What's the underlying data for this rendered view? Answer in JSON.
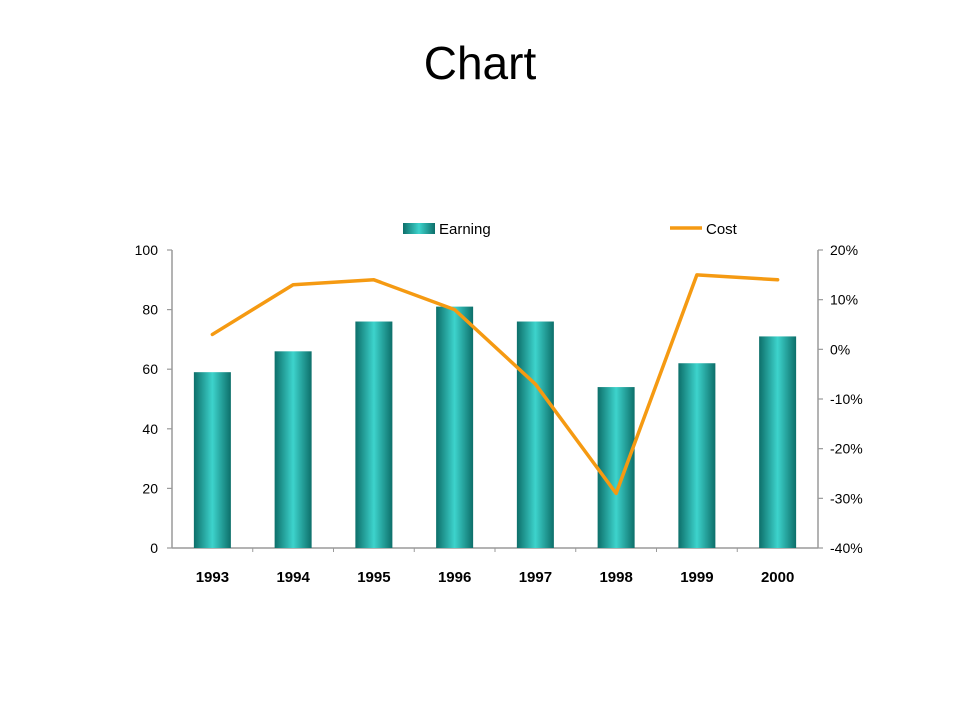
{
  "slide": {
    "title": "Chart"
  },
  "colors": {
    "bar_dark": "#0d6f6a",
    "bar_light": "#3dd3cc",
    "line": "#f59a12",
    "axis": "#9a9a9a"
  },
  "chart_data": {
    "type": "bar",
    "title": "",
    "categories": [
      "1993",
      "1994",
      "1995",
      "1996",
      "1997",
      "1998",
      "1999",
      "2000"
    ],
    "series": [
      {
        "name": "Earning",
        "type": "bar",
        "axis": "left",
        "values": [
          59,
          66,
          76,
          81,
          76,
          54,
          62,
          71
        ]
      },
      {
        "name": "Cost",
        "type": "line",
        "axis": "right",
        "values": [
          3,
          13,
          14,
          8,
          -7,
          -29,
          15,
          14
        ]
      }
    ],
    "y_left": {
      "min": 0,
      "max": 100,
      "ticks": [
        "0",
        "20",
        "40",
        "60",
        "80",
        "100"
      ]
    },
    "y_right": {
      "min": -40,
      "max": 20,
      "unit": "%",
      "ticks": [
        "-40%",
        "-30%",
        "-20%",
        "-10%",
        "0%",
        "10%",
        "20%"
      ]
    },
    "grid": false,
    "legend_position": "top"
  }
}
